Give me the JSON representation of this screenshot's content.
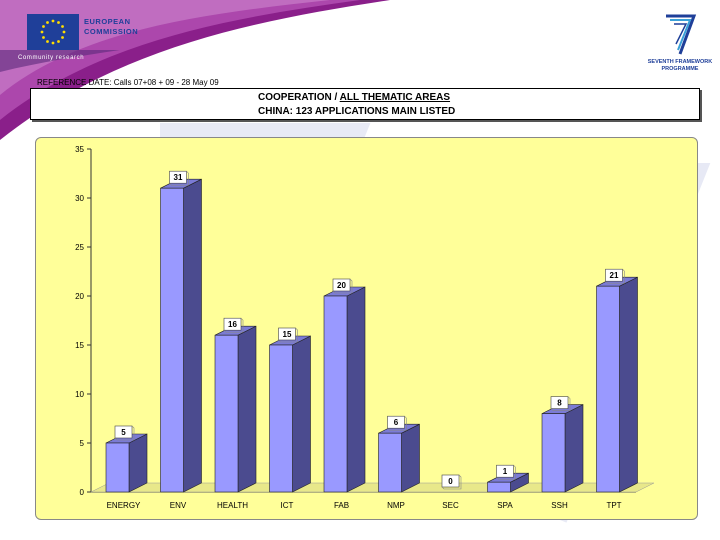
{
  "branding": {
    "eu_line1": "EUROPEAN",
    "eu_line2": "COMMISSION",
    "eu_tagline": "Community research",
    "fp7_line1": "SEVENTH FRAMEWORK",
    "fp7_line2": "PROGRAMME",
    "logo_icon": "eu-flag-icon",
    "fp7_icon": "fp7-logo-icon"
  },
  "reference_date": "REFERENCE DATE: Calls 07+08 + 09 - 28 May 09",
  "title": {
    "line1_prefix": "COOPERATION  / ",
    "line1_underlined": "ALL THEMATIC AREAS",
    "line2": "CHINA: 123 APPLICATIONS MAIN LISTED"
  },
  "colors": {
    "bar_front": "#9999ff",
    "bar_side": "#4b4b8f",
    "bar_top": "#7b7bd6",
    "panel_bg": "#ffff99",
    "brand_blue": "#1f3f99"
  },
  "chart_data": {
    "type": "bar",
    "categories": [
      "ENERGY",
      "ENV",
      "HEALTH",
      "ICT",
      "FAB",
      "NMP",
      "SEC",
      "SPA",
      "SSH",
      "TPT"
    ],
    "values": [
      5,
      31,
      16,
      15,
      20,
      6,
      0,
      1,
      8,
      21
    ],
    "ylim": [
      0,
      35
    ],
    "yticks": [
      0,
      5,
      10,
      15,
      20,
      25,
      30,
      35
    ],
    "grid": false,
    "three_d": true,
    "data_labels": true
  }
}
